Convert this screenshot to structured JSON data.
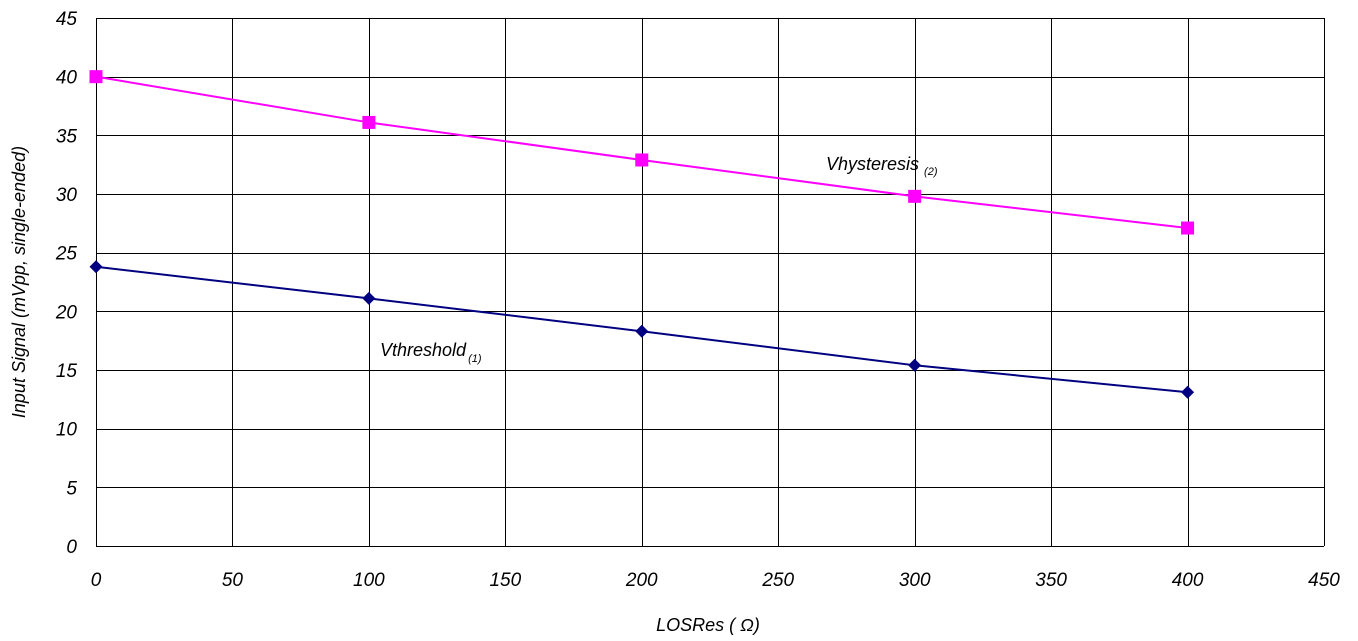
{
  "chart_data": {
    "type": "line",
    "xlabel": "LOSRes ( Ω)",
    "ylabel": "Input Signal (mVpp, single-ended)",
    "xlim": [
      0,
      450
    ],
    "ylim": [
      0,
      45
    ],
    "x_ticks": [
      0,
      50,
      100,
      150,
      200,
      250,
      300,
      350,
      400,
      450
    ],
    "y_ticks": [
      0,
      5,
      10,
      15,
      20,
      25,
      30,
      35,
      40,
      45
    ],
    "grid": true,
    "legend": "none",
    "x": [
      0,
      100,
      200,
      300,
      400
    ],
    "series": [
      {
        "key": "vhysteresis",
        "label_main": "Vhysteresis",
        "label_sub": "(2)",
        "values": [
          40,
          36.1,
          32.9,
          29.8,
          27.1
        ],
        "color": "#ff00ff",
        "marker": "square"
      },
      {
        "key": "vthreshold",
        "label_main": "Vthreshold",
        "label_sub": "(1)",
        "values": [
          23.8,
          21.1,
          18.3,
          15.4,
          13.1
        ],
        "color": "#000080",
        "marker": "diamond"
      }
    ]
  }
}
